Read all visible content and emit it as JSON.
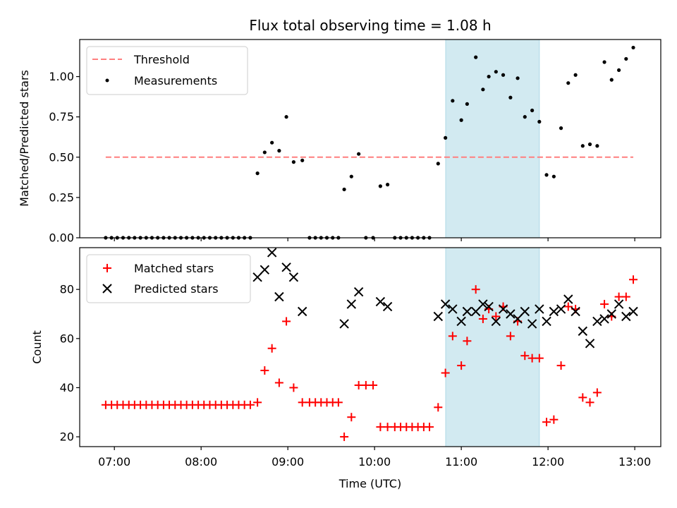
{
  "chart_data": {
    "type": "scatter",
    "title": "Flux total observing time = 1.08 h",
    "xlabel": "Time (UTC)",
    "x_ticks": [
      "07:00",
      "08:00",
      "09:00",
      "10:00",
      "11:00",
      "12:00",
      "13:00"
    ],
    "x_tick_hours": [
      7,
      8,
      9,
      10,
      11,
      12,
      13
    ],
    "xlim_hours": [
      6.6,
      13.3
    ],
    "highlight_span_hours": [
      10.82,
      11.9
    ],
    "highlight_color": "#add8e6",
    "x_hours": [
      6.9,
      6.967,
      7.033,
      7.1,
      7.167,
      7.233,
      7.3,
      7.367,
      7.433,
      7.5,
      7.567,
      7.633,
      7.7,
      7.767,
      7.833,
      7.9,
      7.967,
      8.033,
      8.1,
      8.167,
      8.233,
      8.3,
      8.367,
      8.433,
      8.5,
      8.567,
      8.65,
      8.733,
      8.817,
      8.9,
      8.983,
      9.067,
      9.167,
      9.25,
      9.317,
      9.383,
      9.45,
      9.517,
      9.583,
      9.65,
      9.733,
      9.817,
      9.9,
      9.983,
      10.067,
      10.15,
      10.233,
      10.3,
      10.367,
      10.433,
      10.5,
      10.567,
      10.633,
      10.733,
      10.817,
      10.9,
      11.0,
      11.067,
      11.167,
      11.25,
      11.317,
      11.4,
      11.483,
      11.567,
      11.65,
      11.733,
      11.817,
      11.9,
      11.983,
      12.067,
      12.15,
      12.233,
      12.317,
      12.4,
      12.483,
      12.567,
      12.65,
      12.733,
      12.817,
      12.9,
      12.983
    ],
    "panels": [
      {
        "ylabel": "Matched/Predicted stars",
        "ylim": [
          0,
          1.23
        ],
        "y_ticks": [
          "0.00",
          "0.25",
          "0.50",
          "0.75",
          "1.00"
        ],
        "y_tick_values": [
          0,
          0.25,
          0.5,
          0.75,
          1.0
        ],
        "threshold": {
          "value": 0.5,
          "x_start_hours": 6.9,
          "x_end_hours": 12.983,
          "color": "#ff7f7f"
        },
        "legend": [
          "Threshold",
          "Measurements"
        ],
        "legend_position": "upper-left",
        "series": [
          {
            "name": "Measurements",
            "marker": "dot",
            "color": "#000000",
            "values": [
              0,
              0,
              0,
              0,
              0,
              0,
              0,
              0,
              0,
              0,
              0,
              0,
              0,
              0,
              0,
              0,
              0,
              0,
              0,
              0,
              0,
              0,
              0,
              0,
              0,
              0,
              0.4,
              0.53,
              0.59,
              0.54,
              0.75,
              0.47,
              0.48,
              0,
              0,
              0,
              0,
              0,
              0,
              0.3,
              0.38,
              0.52,
              0,
              0,
              0.32,
              0.33,
              0,
              0,
              0,
              0,
              0,
              0,
              0,
              0.46,
              0.62,
              0.85,
              0.73,
              0.83,
              1.12,
              0.92,
              1.0,
              1.03,
              1.01,
              0.87,
              0.99,
              0.75,
              0.79,
              0.72,
              0.39,
              0.38,
              0.68,
              0.96,
              1.01,
              0.57,
              0.58,
              0.57,
              1.09,
              0.98,
              1.04,
              1.11,
              1.18
            ]
          }
        ]
      },
      {
        "ylabel": "Count",
        "ylim": [
          16,
          97
        ],
        "y_ticks": [
          "20",
          "40",
          "60",
          "80"
        ],
        "y_tick_values": [
          20,
          40,
          60,
          80
        ],
        "legend": [
          "Matched stars",
          "Predicted stars"
        ],
        "legend_position": "upper-left",
        "series": [
          {
            "name": "Matched stars",
            "marker": "plus",
            "color": "#ff0000",
            "values": [
              33,
              33,
              33,
              33,
              33,
              33,
              33,
              33,
              33,
              33,
              33,
              33,
              33,
              33,
              33,
              33,
              33,
              33,
              33,
              33,
              33,
              33,
              33,
              33,
              33,
              33,
              34,
              47,
              56,
              42,
              67,
              40,
              34,
              34,
              34,
              34,
              34,
              34,
              34,
              20,
              28,
              41,
              41,
              41,
              24,
              24,
              24,
              24,
              24,
              24,
              24,
              24,
              24,
              32,
              46,
              61,
              49,
              59,
              80,
              68,
              72,
              69,
              73,
              61,
              67,
              53,
              52,
              52,
              26,
              27,
              49,
              73,
              72,
              36,
              34,
              38,
              74,
              69,
              77,
              77,
              84
            ]
          },
          {
            "name": "Predicted stars",
            "marker": "x",
            "color": "#000000",
            "x_start_index": 26,
            "values": [
              85,
              88,
              95,
              77,
              89,
              85,
              71,
              null,
              null,
              null,
              null,
              null,
              null,
              66,
              74,
              79,
              null,
              null,
              75,
              73,
              null,
              null,
              null,
              null,
              null,
              null,
              null,
              69,
              74,
              72,
              67,
              71,
              71,
              74,
              73,
              67,
              72,
              70,
              68,
              71,
              66,
              72,
              67,
              71,
              72,
              76,
              71,
              63,
              58,
              67,
              68,
              70,
              74,
              69,
              71
            ]
          }
        ]
      }
    ]
  }
}
